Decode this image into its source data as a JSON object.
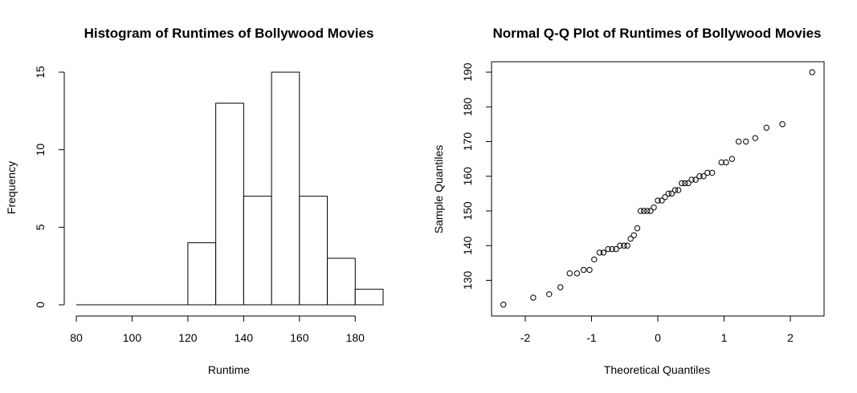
{
  "chart_data": [
    {
      "type": "bar",
      "title": "Histogram of Runtimes of Bollywood Movies",
      "xlabel": "Runtime",
      "ylabel": "Frequency",
      "bins": [
        {
          "start": 80,
          "end": 90,
          "count": 0
        },
        {
          "start": 90,
          "end": 100,
          "count": 0
        },
        {
          "start": 100,
          "end": 110,
          "count": 0
        },
        {
          "start": 110,
          "end": 120,
          "count": 0
        },
        {
          "start": 120,
          "end": 130,
          "count": 4
        },
        {
          "start": 130,
          "end": 140,
          "count": 13
        },
        {
          "start": 140,
          "end": 150,
          "count": 7
        },
        {
          "start": 150,
          "end": 160,
          "count": 15
        },
        {
          "start": 160,
          "end": 170,
          "count": 7
        },
        {
          "start": 170,
          "end": 180,
          "count": 3
        },
        {
          "start": 180,
          "end": 190,
          "count": 1
        }
      ],
      "xticks": [
        80,
        100,
        120,
        140,
        160,
        180
      ],
      "yticks": [
        0,
        5,
        10,
        15
      ],
      "xlim": [
        80,
        190
      ],
      "ylim": [
        0,
        15
      ],
      "grid": false
    },
    {
      "type": "scatter",
      "title": "Normal Q-Q Plot of Runtimes of Bollywood Movies",
      "xlabel": "Theoretical Quantiles",
      "ylabel": "Sample Quantiles",
      "xticks": [
        -2,
        -1,
        0,
        1,
        2
      ],
      "yticks": [
        130,
        140,
        150,
        160,
        170,
        180,
        190
      ],
      "xlim": [
        -2.4,
        2.5
      ],
      "ylim": [
        121,
        193
      ],
      "grid": false,
      "points": [
        [
          -2.33,
          123
        ],
        [
          -1.88,
          125
        ],
        [
          -1.64,
          126
        ],
        [
          -1.47,
          128
        ],
        [
          -1.33,
          132
        ],
        [
          -1.22,
          132
        ],
        [
          -1.12,
          133
        ],
        [
          -1.03,
          133
        ],
        [
          -0.96,
          136
        ],
        [
          -0.88,
          138
        ],
        [
          -0.82,
          138
        ],
        [
          -0.75,
          139
        ],
        [
          -0.69,
          139
        ],
        [
          -0.63,
          139
        ],
        [
          -0.57,
          140
        ],
        [
          -0.51,
          140
        ],
        [
          -0.46,
          140
        ],
        [
          -0.41,
          142
        ],
        [
          -0.36,
          143
        ],
        [
          -0.31,
          145
        ],
        [
          -0.26,
          150
        ],
        [
          -0.21,
          150
        ],
        [
          -0.16,
          150
        ],
        [
          -0.11,
          150
        ],
        [
          -0.06,
          151
        ],
        [
          0.0,
          153
        ],
        [
          0.06,
          153
        ],
        [
          0.11,
          154
        ],
        [
          0.16,
          155
        ],
        [
          0.21,
          155
        ],
        [
          0.26,
          156
        ],
        [
          0.31,
          156
        ],
        [
          0.36,
          158
        ],
        [
          0.41,
          158
        ],
        [
          0.46,
          158
        ],
        [
          0.51,
          159
        ],
        [
          0.57,
          159
        ],
        [
          0.63,
          160
        ],
        [
          0.69,
          160
        ],
        [
          0.75,
          161
        ],
        [
          0.82,
          161
        ],
        [
          0.96,
          164
        ],
        [
          1.03,
          164
        ],
        [
          1.12,
          165
        ],
        [
          1.22,
          170
        ],
        [
          1.33,
          170
        ],
        [
          1.47,
          171
        ],
        [
          1.64,
          174
        ],
        [
          1.88,
          175
        ],
        [
          2.33,
          190
        ]
      ]
    }
  ]
}
